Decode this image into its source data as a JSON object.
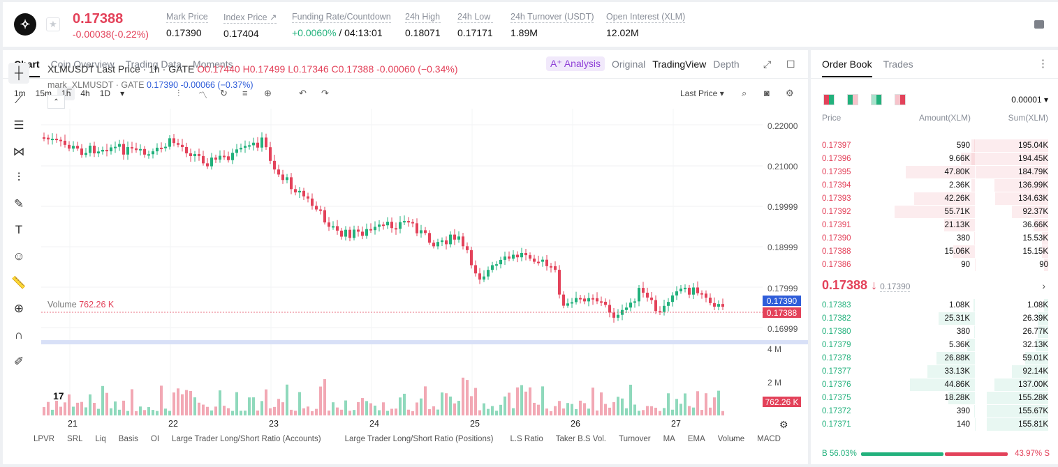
{
  "ticker": {
    "symbol_icon": "stellar-logo",
    "last_price": "0.17388",
    "change": "-0.00038(-0.22%)"
  },
  "stats": [
    {
      "label": "Mark Price",
      "value": "0.17390"
    },
    {
      "label": "Index Price ↗",
      "value": "0.17404"
    },
    {
      "label": "Funding Rate/Countdown",
      "value_green": "+0.0060%",
      "value": " / 04:13:01"
    },
    {
      "label": "24h High",
      "value": "0.18071"
    },
    {
      "label": "24h Low",
      "value": "0.17171"
    },
    {
      "label": "24h Turnover (USDT)",
      "value": "1.89M"
    },
    {
      "label": "Open Interest (XLM)",
      "value": "12.02M"
    }
  ],
  "chart_tabs": [
    "Chart",
    "Coin Overview",
    "Trading Data",
    "Moments"
  ],
  "view_tabs": {
    "analysis": "A⁺ Analysis",
    "original": "Original",
    "tradingview": "TradingView",
    "depth": "Depth"
  },
  "intervals": [
    "1m",
    "15m",
    "1h",
    "4h",
    "1D"
  ],
  "active_interval": "1h",
  "price_type": "Last Price",
  "legend": {
    "title": "XLMUSDT Last Price · 1h · GATE",
    "o": "O0.17440",
    "h": "H0.17499",
    "l": "L0.17346",
    "c": "C0.17388",
    "chg": "-0.00060 (−0.34%)",
    "mark_name": "mark_XLMUSDT · GATE",
    "mark_val": "0.17390 -0.00066 (−0.37%)"
  },
  "volume_legend": {
    "label": "Volume",
    "value": "762.26 K"
  },
  "price_axis": [
    "0.22000",
    "0.21000",
    "0.19999",
    "0.18999",
    "0.17999",
    "0.16999"
  ],
  "volume_axis": [
    "4 M",
    "2 M"
  ],
  "badges": {
    "mark": "0.17390",
    "last": "0.17388",
    "volume": "762.26 K"
  },
  "dates": [
    "21",
    "22",
    "23",
    "24",
    "25",
    "26",
    "27"
  ],
  "tv_logo": "17",
  "indicators": [
    "LPVR",
    "SRL",
    "Liq",
    "Basis",
    "OI",
    "Large Trader Long/Short Ratio (Accounts)",
    "Large Trader Long/Short Ratio (Positions)",
    "L.S Ratio",
    "Taker B.S Vol.",
    "Turnover",
    "MA",
    "EMA",
    "Volume",
    "MACD"
  ],
  "orderbook": {
    "tabs": [
      "Order Book",
      "Trades"
    ],
    "precision": "0.00001 ▾",
    "headers": {
      "price": "Price",
      "amount": "Amount(XLM)",
      "sum": "Sum(XLM)"
    },
    "asks": [
      {
        "price": "0.17397",
        "amount": "590",
        "sum": "195.04K"
      },
      {
        "price": "0.17396",
        "amount": "9.66K",
        "sum": "194.45K"
      },
      {
        "price": "0.17395",
        "amount": "47.80K",
        "sum": "184.79K"
      },
      {
        "price": "0.17394",
        "amount": "2.36K",
        "sum": "136.99K"
      },
      {
        "price": "0.17393",
        "amount": "42.26K",
        "sum": "134.63K"
      },
      {
        "price": "0.17392",
        "amount": "55.71K",
        "sum": "92.37K"
      },
      {
        "price": "0.17391",
        "amount": "21.13K",
        "sum": "36.66K"
      },
      {
        "price": "0.17390",
        "amount": "380",
        "sum": "15.53K"
      },
      {
        "price": "0.17388",
        "amount": "15.06K",
        "sum": "15.15K"
      },
      {
        "price": "0.17386",
        "amount": "90",
        "sum": "90"
      }
    ],
    "mid_price": "0.17388 ↓",
    "mid_mark": "0.17390",
    "bids": [
      {
        "price": "0.17383",
        "amount": "1.08K",
        "sum": "1.08K"
      },
      {
        "price": "0.17382",
        "amount": "25.31K",
        "sum": "26.39K"
      },
      {
        "price": "0.17380",
        "amount": "380",
        "sum": "26.77K"
      },
      {
        "price": "0.17379",
        "amount": "5.36K",
        "sum": "32.13K"
      },
      {
        "price": "0.17378",
        "amount": "26.88K",
        "sum": "59.01K"
      },
      {
        "price": "0.17377",
        "amount": "33.13K",
        "sum": "92.14K"
      },
      {
        "price": "0.17376",
        "amount": "44.86K",
        "sum": "137.00K"
      },
      {
        "price": "0.17375",
        "amount": "18.28K",
        "sum": "155.28K"
      },
      {
        "price": "0.17372",
        "amount": "390",
        "sum": "155.67K"
      },
      {
        "price": "0.17371",
        "amount": "140",
        "sum": "155.81K"
      }
    ],
    "buy_ratio": "B 56.03%",
    "sell_ratio": "43.97% S",
    "buy_pct": 56.03
  },
  "colors": {
    "up": "#22b17c",
    "down": "#e3425a",
    "accent": "#2f5dd9"
  }
}
